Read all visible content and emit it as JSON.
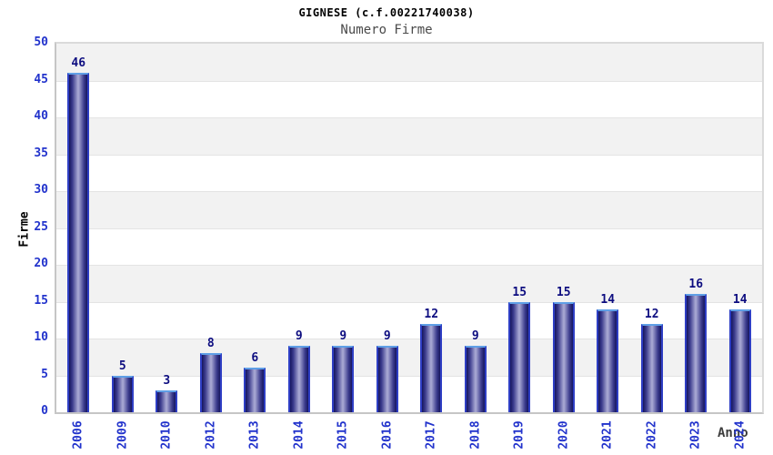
{
  "header": {
    "title": "GIGNESE (c.f.00221740038)",
    "subtitle": "Numero Firme"
  },
  "chart_data": {
    "type": "bar",
    "title": "GIGNESE (c.f.00221740038)",
    "subtitle": "Numero Firme",
    "xlabel": "Anno",
    "ylabel": "Firme",
    "categories": [
      "2006",
      "2009",
      "2010",
      "2012",
      "2013",
      "2014",
      "2015",
      "2016",
      "2017",
      "2018",
      "2019",
      "2020",
      "2021",
      "2022",
      "2023",
      "2024"
    ],
    "values": [
      46,
      5,
      3,
      8,
      6,
      9,
      9,
      9,
      12,
      9,
      15,
      15,
      14,
      12,
      16,
      14
    ],
    "ylim": [
      0,
      50
    ],
    "ytick_step": 5,
    "grid": "alternating-horizontal-bands",
    "legend": "none",
    "colors": {
      "tick_label": "#2233cc",
      "value_label": "#0d0d80",
      "bar_side_edge": "#2e3ec4",
      "bar_top_highlight": "#5f9fe6",
      "bar_dark": "#16165e",
      "bar_mid": "#3a3a8c",
      "bar_light": "#a6a6d2",
      "band_gray": "#f2f2f2",
      "band_white": "#ffffff",
      "grid_line": "#e4e4e4",
      "axis_line": "#c6c6c6",
      "plot_border": "#dadada",
      "title_color": "#000000",
      "subtitle_color": "#4a4a4a",
      "xlabel_color": "#3d3d3d",
      "ylabel_color": "#000000"
    }
  }
}
